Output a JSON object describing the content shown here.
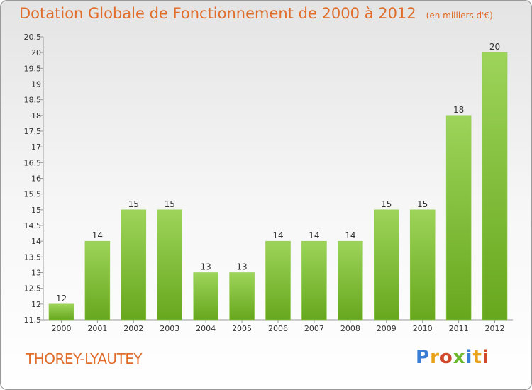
{
  "title": "Dotation Globale de Fonctionnement de 2000 à 2012",
  "unit": "(en milliers d'€)",
  "commune": "THOREY-LYAUTEY",
  "logo": {
    "text": "Proxiti",
    "colors": [
      "#3a7fd5",
      "#e8a21b",
      "#d14a2b",
      "#6bb92e",
      "#3a7fd5",
      "#e8a21b",
      "#d14a2b"
    ]
  },
  "colors": {
    "bar_light": "#9dd45a",
    "bar_dark": "#67a71d",
    "title": "#e06d2a"
  },
  "chart_data": {
    "type": "bar",
    "categories": [
      "2000",
      "2001",
      "2002",
      "2003",
      "2004",
      "2005",
      "2006",
      "2007",
      "2008",
      "2009",
      "2010",
      "2011",
      "2012"
    ],
    "values": [
      12,
      14,
      15,
      15,
      13,
      13,
      14,
      14,
      14,
      15,
      15,
      18,
      20
    ],
    "data_labels": [
      "12",
      "14",
      "15",
      "15",
      "13",
      "13",
      "14",
      "14",
      "14",
      "15",
      "15",
      "18",
      "20"
    ],
    "ylim": [
      11.5,
      20.5
    ],
    "yticks": [
      11.5,
      12,
      12.5,
      13,
      13.5,
      14,
      14.5,
      15,
      15.5,
      16,
      16.5,
      17,
      17.5,
      18,
      18.5,
      19,
      19.5,
      20,
      20.5
    ],
    "grid": false
  }
}
